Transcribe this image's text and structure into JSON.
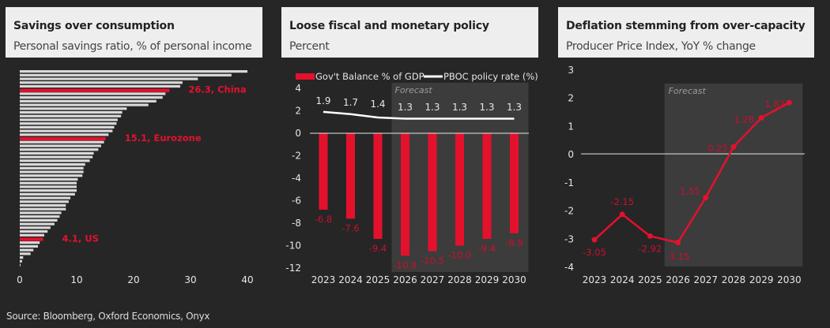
{
  "colors": {
    "accent": "#e4112d",
    "bar_grey": "#d9d9d9",
    "axis": "#e6e6e6",
    "forecast_bg": "#3c3c3c",
    "label_red": "#c8102e"
  },
  "source": "Source: Bloomberg, Oxford Economics, Onyx",
  "chart_data": [
    {
      "type": "bar",
      "orientation": "horizontal",
      "title": "Savings over consumption",
      "subtitle": "Personal savings ratio, % of personal income",
      "xlim": [
        0,
        40
      ],
      "xticks": [
        "0",
        "10",
        "20",
        "30",
        "40"
      ],
      "values": [
        40.0,
        37.2,
        31.3,
        28.6,
        28.2,
        26.3,
        25.6,
        25.1,
        24.0,
        22.6,
        18.8,
        18.0,
        17.8,
        17.2,
        17.0,
        16.6,
        16.3,
        15.6,
        15.1,
        14.8,
        14.3,
        13.8,
        13.0,
        12.8,
        12.3,
        11.5,
        11.2,
        11.2,
        11.0,
        10.2,
        10.0,
        10.0,
        10.0,
        9.7,
        8.9,
        8.6,
        8.1,
        8.1,
        7.3,
        7.0,
        6.6,
        6.1,
        5.4,
        4.9,
        4.3,
        4.1,
        3.5,
        3.2,
        2.4,
        1.9,
        0.6,
        0.4,
        0.1
      ],
      "highlights": [
        {
          "index": 5,
          "label": "26.3, China"
        },
        {
          "index": 18,
          "label": "15.1, Eurozone"
        },
        {
          "index": 45,
          "label": "4.1, US"
        }
      ]
    },
    {
      "type": "bar",
      "title": "Loose fiscal and monetary policy",
      "subtitle": "Percent",
      "categories": [
        "2023",
        "2024",
        "2025",
        "2026",
        "2027",
        "2028",
        "2029",
        "2030"
      ],
      "ylim": [
        -12,
        4
      ],
      "yticks": [
        "4",
        "2",
        "0",
        "-2",
        "-4",
        "-6",
        "-8",
        "-10",
        "-12"
      ],
      "forecast_label": "Forecast",
      "forecast_from_index": 3,
      "series": [
        {
          "name": "Gov't Balance % of GDP",
          "kind": "bar",
          "values": [
            -6.8,
            -7.6,
            -9.4,
            -10.9,
            -10.5,
            -10.0,
            -9.4,
            -8.9
          ],
          "labels": [
            "-6.8",
            "-7.6",
            "-9.4",
            "-10.9",
            "-10.5",
            "-10.0",
            "-9.4",
            "-8.9"
          ]
        },
        {
          "name": "PBOC policy rate (%)",
          "kind": "line",
          "values": [
            1.9,
            1.7,
            1.4,
            1.3,
            1.3,
            1.3,
            1.3,
            1.3
          ],
          "labels": [
            "1.9",
            "1.7",
            "1.4",
            "1.3",
            "1.3",
            "1.3",
            "1.3",
            "1.3"
          ]
        }
      ]
    },
    {
      "type": "line",
      "title": "Deflation stemming from over-capacity",
      "subtitle": "Producer Price Index, YoY % change",
      "categories": [
        "2023",
        "2024",
        "2025",
        "2026",
        "2027",
        "2028",
        "2029",
        "2030"
      ],
      "ylim": [
        -4,
        3
      ],
      "yticks": [
        "3",
        "2",
        "1",
        "0",
        "-1",
        "-2",
        "-3",
        "-4"
      ],
      "forecast_label": "Forecast",
      "forecast_from_index": 3,
      "values": [
        -3.05,
        -2.15,
        -2.92,
        -3.15,
        -1.55,
        0.25,
        1.28,
        1.82
      ],
      "labels": [
        "-3.05",
        "-2.15",
        "-2.92",
        "-3.15",
        "-1.55",
        "0.25",
        "1.28",
        "1.82"
      ]
    }
  ]
}
